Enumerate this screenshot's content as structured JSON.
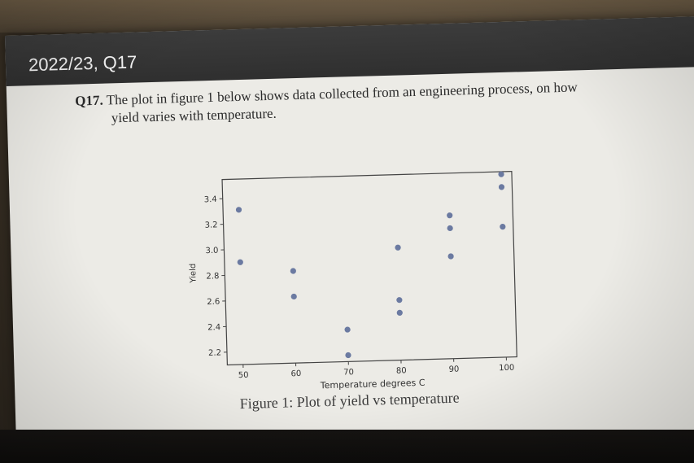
{
  "slide": {
    "title": "2022/23, Q17",
    "question_number": "Q17.",
    "question_line1": "The plot in figure 1 below shows data collected from an engineering process, on how",
    "question_line2": "yield varies with temperature.",
    "caption": "Figure 1: Plot of yield vs temperature"
  },
  "colors": {
    "title_bar": "#333333",
    "slide_bg": "#ecebe6",
    "point": "#6b7aa1"
  },
  "chart_data": {
    "type": "scatter",
    "title": "",
    "xlabel": "Temperature degrees C",
    "ylabel": "Yield",
    "xlim": [
      47,
      102
    ],
    "ylim": [
      2.1,
      3.55
    ],
    "x_ticks": [
      50,
      60,
      70,
      80,
      90,
      100
    ],
    "y_ticks": [
      2.2,
      2.4,
      2.6,
      2.8,
      3.0,
      3.2,
      3.4
    ],
    "x_tick_labels": [
      "50",
      "60",
      "70",
      "80",
      "90",
      "100"
    ],
    "y_tick_labels": [
      "2.2",
      "2.4",
      "2.6",
      "2.8",
      "3.0",
      "3.2",
      "3.4"
    ],
    "grid": false,
    "points": [
      {
        "x": 50,
        "y": 3.31
      },
      {
        "x": 50,
        "y": 2.9
      },
      {
        "x": 60,
        "y": 2.82
      },
      {
        "x": 60,
        "y": 2.62
      },
      {
        "x": 70,
        "y": 2.35
      },
      {
        "x": 70,
        "y": 2.15
      },
      {
        "x": 80,
        "y": 2.98
      },
      {
        "x": 80,
        "y": 2.57
      },
      {
        "x": 80,
        "y": 2.47
      },
      {
        "x": 90,
        "y": 3.22
      },
      {
        "x": 90,
        "y": 3.12
      },
      {
        "x": 90,
        "y": 2.9
      },
      {
        "x": 100,
        "y": 3.53
      },
      {
        "x": 100,
        "y": 3.43
      },
      {
        "x": 100,
        "y": 3.12
      }
    ]
  }
}
